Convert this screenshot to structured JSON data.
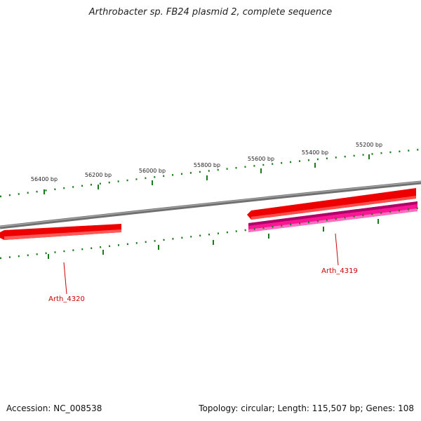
{
  "title": "Arthrobacter sp. FB24 plasmid 2, complete sequence",
  "footer": {
    "accession": "Accession: NC_008538",
    "summary": "Topology: circular; Length: 115,507 bp; Genes: 108"
  },
  "ticks": [
    {
      "label": "56400 bp"
    },
    {
      "label": "56200 bp"
    },
    {
      "label": "56000 bp"
    },
    {
      "label": "55800 bp"
    },
    {
      "label": "55600 bp"
    },
    {
      "label": "55400 bp"
    },
    {
      "label": "55200 bp"
    }
  ],
  "genes": [
    {
      "name": "Arth_4320",
      "color": "#ee0000"
    },
    {
      "name": "Arth_4319",
      "color": "#ee0000",
      "second_track_color": "#ff1493"
    }
  ],
  "colors": {
    "backbone": "#808080",
    "tick": "#1a7a1a",
    "gene_red": "#ee0000",
    "gene_pink": "#ff1493",
    "gene_label": "#cc0000"
  }
}
